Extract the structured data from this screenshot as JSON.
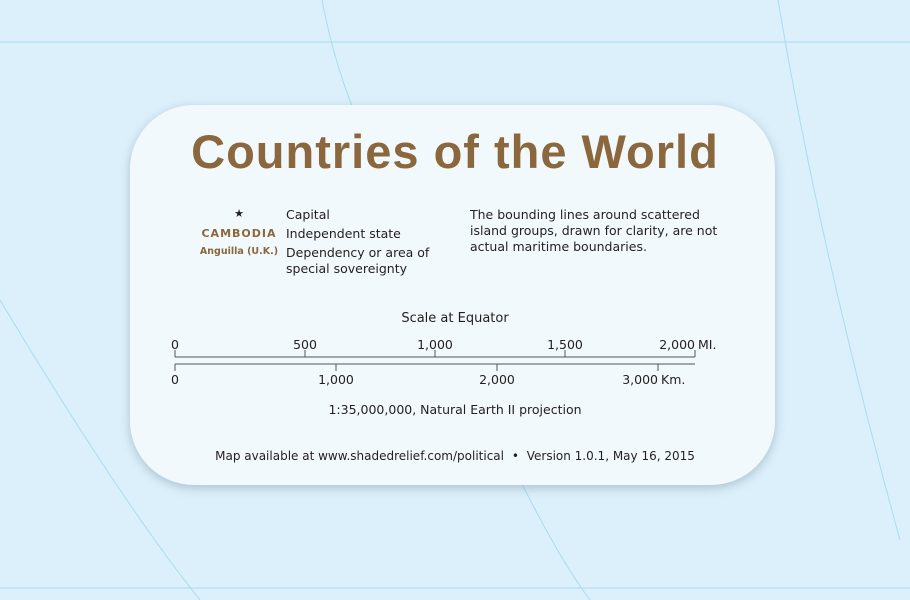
{
  "title": "Countries of the World",
  "legend": [
    {
      "symbol": "★",
      "symbol_name": "star-icon",
      "label": "Capital"
    },
    {
      "symbol": "CAMBODIA",
      "label": "Independent state"
    },
    {
      "symbol": "Anguilla (U.K.)",
      "label": "Dependency or area of special sovereignty"
    }
  ],
  "note": "The bounding lines around scattered island groups, drawn for clarity, are not actual maritime boundaries.",
  "scale": {
    "title": "Scale at Equator",
    "miles": {
      "ticks": [
        "0",
        "500",
        "1,000",
        "1,500",
        "2,000"
      ],
      "values": [
        0,
        500,
        1000,
        1500,
        2000
      ],
      "unit": "MI."
    },
    "km": {
      "ticks": [
        "0",
        "1,000",
        "2,000",
        "3,000"
      ],
      "values": [
        0,
        1000,
        2000,
        3000
      ],
      "unit": "Km."
    },
    "ratio": "1:35,000,000, Natural Earth II projection"
  },
  "footer": {
    "text": "Map available at www.shadedrelief.com/political",
    "separator": "•",
    "version": "Version 1.0.1, May 16, 2015"
  },
  "colors": {
    "ocean": "#dcf0fb",
    "card": "#f1f9fd",
    "title": "#8b673d",
    "graticule": "#a8dcef"
  }
}
